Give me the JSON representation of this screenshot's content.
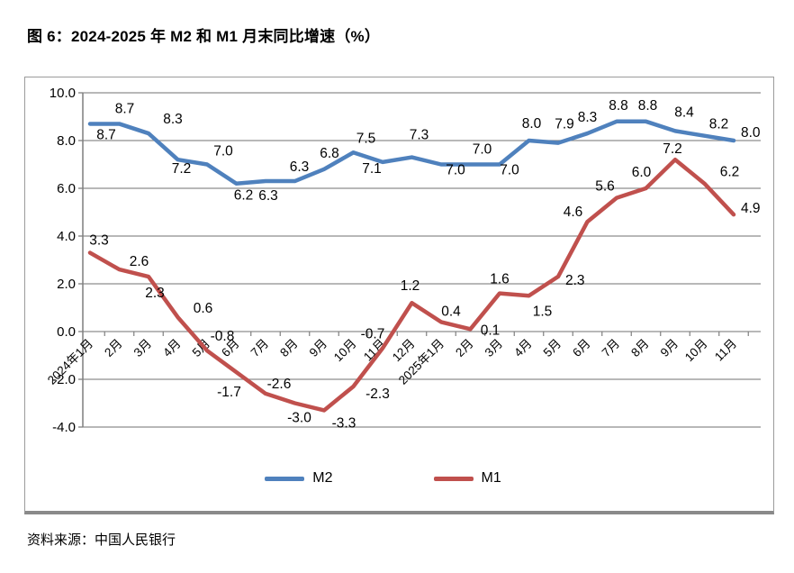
{
  "page": {
    "title": "图 6：2024-2025 年 M2 和 M1 月末同比增速（%）",
    "source": "资料来源：中国人民银行"
  },
  "legend": {
    "m2_label": "M2",
    "m1_label": "M1"
  },
  "colors": {
    "m2": "#4F81BD",
    "m1": "#C0504D",
    "grid": "#8e8e8e",
    "axis": "#7f7f7f",
    "text": "#000000"
  },
  "chart_data": {
    "type": "line",
    "title": "图 6：2024-2025 年 M2 和 M1 月末同比增速（%）",
    "categories": [
      "2024年1月",
      "2月",
      "3月",
      "4月",
      "5月",
      "6月",
      "7月",
      "8月",
      "9月",
      "10月",
      "11月",
      "12月",
      "2025年1月",
      "2月",
      "3月",
      "4月",
      "5月",
      "6月",
      "7月",
      "8月",
      "9月",
      "10月",
      "11月"
    ],
    "series": [
      {
        "name": "M2",
        "color": "#4F81BD",
        "values": [
          8.7,
          8.7,
          8.3,
          7.2,
          7.0,
          6.2,
          6.3,
          6.3,
          6.8,
          7.5,
          7.1,
          7.3,
          7.0,
          7.0,
          7.0,
          8.0,
          7.9,
          8.3,
          8.8,
          8.8,
          8.4,
          8.2,
          8.0
        ]
      },
      {
        "name": "M1",
        "color": "#C0504D",
        "values": [
          3.3,
          2.6,
          2.3,
          0.6,
          -0.8,
          -1.7,
          -2.6,
          -3.0,
          -3.3,
          -2.3,
          -0.7,
          1.2,
          0.4,
          0.1,
          1.6,
          1.5,
          2.3,
          4.6,
          5.6,
          6.0,
          7.2,
          6.2,
          4.9
        ]
      }
    ],
    "y_ticks": [
      10.0,
      8.0,
      6.0,
      4.0,
      2.0,
      0.0,
      -2.0,
      -4.0
    ],
    "ylim": [
      -4.0,
      10.0
    ],
    "grid": true,
    "legend_position": "bottom",
    "data_labels": true,
    "label_layout": {
      "M2": [
        [
          "b",
          18,
          17
        ],
        [
          "a",
          6,
          -12
        ],
        [
          "a",
          27,
          -11
        ],
        [
          "b",
          4,
          15
        ],
        [
          "a",
          18,
          -10
        ],
        [
          "b",
          8,
          18
        ],
        [
          "b",
          3,
          21
        ],
        [
          "a",
          5,
          -11
        ],
        [
          "a",
          6,
          -13
        ],
        [
          "a",
          14,
          -11
        ],
        [
          "b",
          -12,
          12
        ],
        [
          "a",
          8,
          -20
        ],
        [
          "b",
          16,
          11
        ],
        [
          "a",
          13,
          -12
        ],
        [
          "b",
          11,
          11
        ],
        [
          "a",
          3,
          -14
        ],
        [
          "a",
          7,
          -16
        ],
        [
          "a",
          0,
          -13
        ],
        [
          "a",
          2,
          -13
        ],
        [
          "a",
          2,
          -13
        ],
        [
          "a",
          10,
          -16
        ],
        [
          "a",
          16,
          -8
        ],
        [
          "r",
          0,
          -4
        ]
      ],
      "M1": [
        [
          "a",
          10,
          -9
        ],
        [
          "a",
          22,
          -4
        ],
        [
          "b",
          7,
          23
        ],
        [
          "a",
          28,
          -5
        ],
        [
          "a",
          17,
          -11
        ],
        [
          "b",
          -8,
          27
        ],
        [
          "a",
          15,
          -6
        ],
        [
          "b",
          5,
          21
        ],
        [
          "b",
          22,
          19
        ],
        [
          "b",
          27,
          13
        ],
        [
          "a",
          -11,
          -11
        ],
        [
          "a",
          -2,
          -14
        ],
        [
          "a",
          11,
          -7
        ],
        [
          "b",
          22,
          6
        ],
        [
          "a",
          0,
          -11
        ],
        [
          "b",
          15,
          22
        ],
        [
          "r",
          0,
          9
        ],
        [
          "a",
          -16,
          -6
        ],
        [
          "a",
          -13,
          -8
        ],
        [
          "a",
          -5,
          -13
        ],
        [
          "a",
          -3,
          -7
        ],
        [
          "a",
          28,
          -8
        ],
        [
          "r",
          0,
          -2
        ]
      ]
    }
  }
}
